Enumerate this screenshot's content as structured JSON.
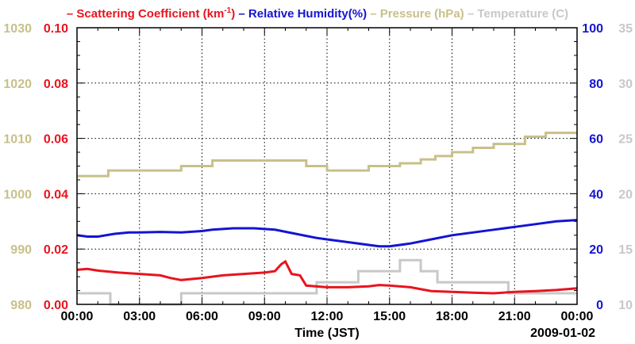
{
  "chart_data": {
    "type": "line",
    "title_parts": [
      {
        "text": "– Scattering Coefficient (km",
        "sup": "-1",
        "tail": ")",
        "color": "#e8141e"
      },
      {
        "text": "– Relative Humidity(%)",
        "color": "#1414d2"
      },
      {
        "text": "– Pressure (hPa)",
        "color": "#c8c08a"
      },
      {
        "text": "– Temperature (C)",
        "color": "#c8c8c8"
      }
    ],
    "xlabel": "Time (JST)",
    "date_label": "2009-01-02",
    "x_ticks": [
      "00:00",
      "03:00",
      "06:00",
      "09:00",
      "12:00",
      "15:00",
      "18:00",
      "21:00",
      "00:00"
    ],
    "x_range_hours": [
      0,
      24
    ],
    "axes": {
      "pressure": {
        "range": [
          980,
          1030
        ],
        "ticks": [
          "980",
          "990",
          "1000",
          "1010",
          "1020",
          "1030"
        ],
        "color": "#c8c08a"
      },
      "scattering": {
        "range": [
          0,
          0.1
        ],
        "ticks": [
          "0.00",
          "0.02",
          "0.04",
          "0.06",
          "0.08",
          "0.10"
        ],
        "color": "#e8141e"
      },
      "humidity": {
        "range": [
          0,
          100
        ],
        "ticks": [
          "0",
          "20",
          "40",
          "60",
          "80",
          "100"
        ],
        "color": "#1414d2"
      },
      "temperature": {
        "range": [
          10,
          35
        ],
        "ticks": [
          "10",
          "15",
          "20",
          "25",
          "30",
          "35"
        ],
        "color": "#c8c8c8"
      }
    },
    "series": [
      {
        "name": "Pressure (hPa)",
        "axis": "pressure",
        "color": "#c8c08a",
        "step": true,
        "points": [
          [
            0,
            1003.2
          ],
          [
            1.5,
            1004.2
          ],
          [
            3.5,
            1004.2
          ],
          [
            5,
            1005
          ],
          [
            6.5,
            1006
          ],
          [
            9.5,
            1006
          ],
          [
            11,
            1005
          ],
          [
            12,
            1004.2
          ],
          [
            14,
            1005
          ],
          [
            15.5,
            1005.5
          ],
          [
            16.5,
            1006.2
          ],
          [
            17.2,
            1006.8
          ],
          [
            18,
            1007.5
          ],
          [
            19,
            1008.3
          ],
          [
            20,
            1009
          ],
          [
            21.5,
            1010.3
          ],
          [
            22.5,
            1011
          ],
          [
            24,
            1011
          ]
        ]
      },
      {
        "name": "Relative Humidity(%)",
        "axis": "humidity",
        "color": "#1414d2",
        "step": false,
        "points": [
          [
            0,
            25
          ],
          [
            0.5,
            24.5
          ],
          [
            1,
            24.5
          ],
          [
            1.8,
            25.5
          ],
          [
            2.5,
            26
          ],
          [
            3,
            26
          ],
          [
            4,
            26.2
          ],
          [
            5,
            26
          ],
          [
            6,
            26.5
          ],
          [
            6.5,
            27
          ],
          [
            7.5,
            27.5
          ],
          [
            8.5,
            27.5
          ],
          [
            9.5,
            27
          ],
          [
            10.5,
            25.5
          ],
          [
            11.5,
            24
          ],
          [
            12,
            23.5
          ],
          [
            13,
            22.5
          ],
          [
            14,
            21.5
          ],
          [
            14.5,
            21
          ],
          [
            15,
            21
          ],
          [
            15.5,
            21.5
          ],
          [
            16,
            22
          ],
          [
            17,
            23.5
          ],
          [
            18,
            25
          ],
          [
            19,
            26
          ],
          [
            20,
            27
          ],
          [
            21,
            28
          ],
          [
            22,
            29
          ],
          [
            23,
            30
          ],
          [
            24,
            30.5
          ]
        ]
      },
      {
        "name": "Scattering Coefficient (km-1)",
        "axis": "scattering",
        "color": "#e8141e",
        "step": false,
        "points": [
          [
            0,
            0.0125
          ],
          [
            0.5,
            0.0128
          ],
          [
            1,
            0.0122
          ],
          [
            2,
            0.0115
          ],
          [
            3,
            0.011
          ],
          [
            4,
            0.0105
          ],
          [
            4.5,
            0.0095
          ],
          [
            5,
            0.0088
          ],
          [
            6,
            0.0095
          ],
          [
            7,
            0.0105
          ],
          [
            8,
            0.011
          ],
          [
            9,
            0.0115
          ],
          [
            9.5,
            0.012
          ],
          [
            9.8,
            0.0145
          ],
          [
            10,
            0.0155
          ],
          [
            10.3,
            0.011
          ],
          [
            10.7,
            0.0105
          ],
          [
            11,
            0.0068
          ],
          [
            12,
            0.0062
          ],
          [
            13,
            0.0062
          ],
          [
            14,
            0.0065
          ],
          [
            14.5,
            0.007
          ],
          [
            15,
            0.0068
          ],
          [
            16,
            0.0062
          ],
          [
            17,
            0.0048
          ],
          [
            18,
            0.0045
          ],
          [
            19,
            0.0042
          ],
          [
            20,
            0.004
          ],
          [
            21,
            0.0045
          ],
          [
            22,
            0.0048
          ],
          [
            23,
            0.0052
          ],
          [
            24,
            0.0058
          ]
        ]
      },
      {
        "name": "Temperature (C)",
        "axis": "temperature",
        "color": "#c8c8c8",
        "step": true,
        "points": [
          [
            0,
            11.0
          ],
          [
            1.6,
            10.0
          ],
          [
            5,
            11.0
          ],
          [
            11.5,
            12.0
          ],
          [
            13.5,
            13.0
          ],
          [
            15.5,
            14.0
          ],
          [
            16.5,
            13.0
          ],
          [
            17.3,
            12.0
          ],
          [
            20.7,
            11.0
          ],
          [
            24,
            11.0
          ]
        ]
      }
    ]
  }
}
